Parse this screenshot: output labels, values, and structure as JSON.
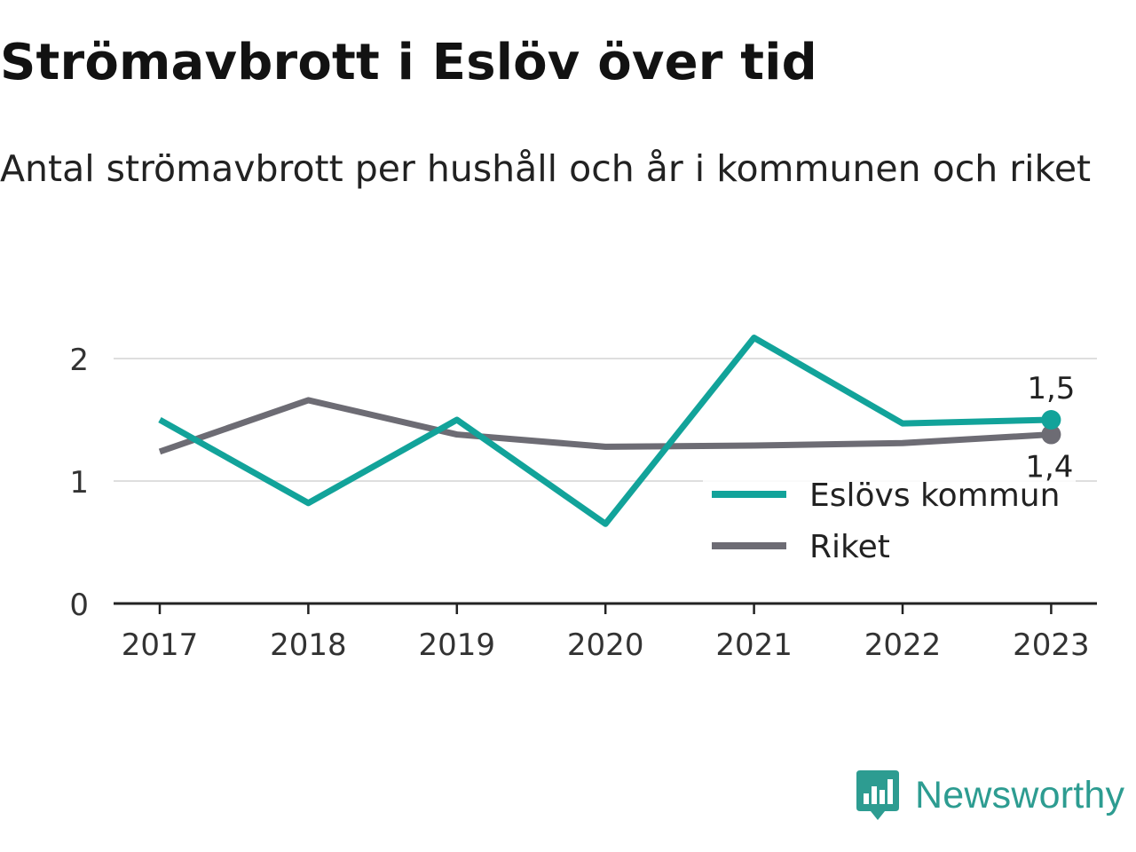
{
  "header": {
    "title": "Strömavbrott i Eslöv över tid",
    "subtitle": "Antal strömavbrott per hushåll och år i kommunen och riket"
  },
  "brand": {
    "name": "Newsworthy",
    "color": "#2d9c91",
    "logo_icon": "bar-chart-speech-bubble-icon"
  },
  "chart_data": {
    "type": "line",
    "title": "Strömavbrott i Eslöv över tid",
    "subtitle": "Antal strömavbrott per hushåll och år i kommunen och riket",
    "x": [
      "2017",
      "2018",
      "2019",
      "2020",
      "2021",
      "2022",
      "2023"
    ],
    "ylim": [
      0,
      2.2
    ],
    "yticks": [
      "0",
      "1",
      "2"
    ],
    "grid": true,
    "legend_position": "bottom-right",
    "series": [
      {
        "name": "Eslövs kommun",
        "color": "#12a39a",
        "values": [
          1.5,
          0.82,
          1.5,
          0.65,
          2.17,
          1.47,
          1.5
        ],
        "end_label": "1,5"
      },
      {
        "name": "Riket",
        "color": "#6d6c74",
        "values": [
          1.24,
          1.66,
          1.38,
          1.28,
          1.29,
          1.31,
          1.38
        ],
        "end_label": "1,4"
      }
    ]
  }
}
